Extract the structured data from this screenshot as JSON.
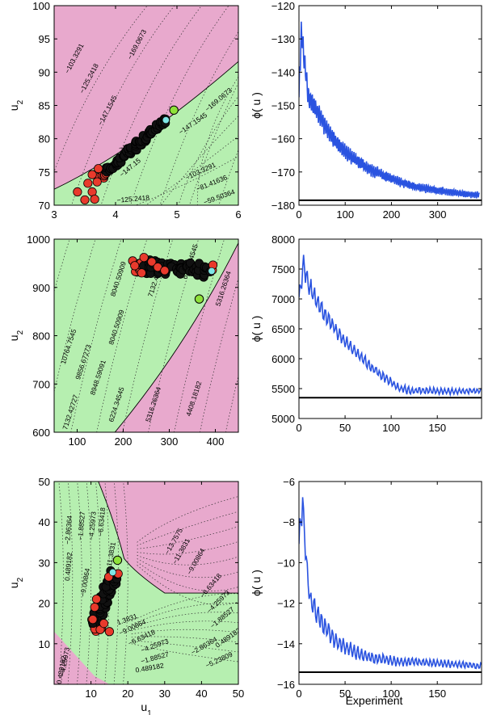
{
  "figure": {
    "left_panels": [
      {
        "xlim": [
          3,
          6
        ],
        "ylim": [
          70,
          100
        ],
        "xticks": [
          "3",
          "4",
          "5",
          "6"
        ],
        "yticks": [
          "70",
          "75",
          "80",
          "85",
          "90",
          "95",
          "100"
        ],
        "ylabel": "u2",
        "xlabel": "",
        "contour_labels": [
          "-103.3291",
          "-125.2418",
          "-147.1545",
          "-169.0673",
          "-169.0673",
          "-147.1545",
          "-103.3291",
          "-81.41636",
          "-59.50364",
          "-125.2418",
          "-169.07",
          "-147.15"
        ],
        "region_colors": {
          "infeasible": "#e8a9cd",
          "feasible": "#b6efb0"
        },
        "start_point": [
          4.95,
          84.3
        ],
        "end_point": [
          4.82,
          82.8
        ]
      },
      {
        "xlim": [
          50,
          450
        ],
        "ylim": [
          600,
          1000
        ],
        "xticks": [
          "100",
          "200",
          "300",
          "400"
        ],
        "yticks": [
          "600",
          "700",
          "800",
          "900",
          "1000"
        ],
        "ylabel": "u2",
        "xlabel": "",
        "contour_labels": [
          "10764.7545",
          "9856.67273",
          "8948.59091",
          "8040.50909",
          "7132.42727",
          "6224.34545",
          "5316.26364",
          "4408.18182",
          "8040.50909",
          "7132.4",
          "6224.34545",
          "5316.26364"
        ],
        "region_colors": {
          "infeasible": "#e8a9cd",
          "feasible": "#b6efb0"
        },
        "start_point": [
          365,
          876
        ],
        "end_point": [
          392,
          934
        ]
      },
      {
        "xlim": [
          0,
          50
        ],
        "ylim": [
          0,
          50
        ],
        "xticks": [
          "10",
          "20",
          "30",
          "40",
          "50"
        ],
        "yticks": [
          "10",
          "20",
          "30",
          "40",
          "50"
        ],
        "ylabel": "u2",
        "xlabel": "u1",
        "contour_labels": [
          "-2.86364",
          "-1.88527",
          "-4.25973",
          "-6.63418",
          "-11.3831",
          "0.489182",
          "-9.00864",
          "-13.7575",
          "-11.3831",
          "-9.00864",
          "-6.63418",
          "-4.25973",
          "-1.88527",
          "0.489182",
          "1.3831",
          "-9.00864",
          "-6.63418",
          "-4.25973",
          "-1.88527",
          "0.489182",
          "-2.86364",
          "-5.23809",
          "-4.25973",
          "-0.489182"
        ],
        "region_colors": {
          "infeasible": "#e8a9cd",
          "feasible": "#b6efb0"
        },
        "start_point": [
          17.2,
          30.6
        ],
        "end_point": [
          15.9,
          27.6
        ]
      }
    ],
    "right_panels": [
      {
        "ylabel": "ϕ( u )",
        "xlabel": "",
        "xlim": [
          0,
          395
        ],
        "ylim": [
          -180,
          -120
        ],
        "xticks": [
          "0",
          "100",
          "200",
          "300"
        ],
        "yticks": [
          "-180",
          "-170",
          "-160",
          "-150",
          "-140",
          "-130",
          "-120"
        ],
        "optimum": -178.5,
        "series_color": "#2a53e0"
      },
      {
        "ylabel": "ϕ( u )",
        "xlabel": "",
        "xlim": [
          0,
          198
        ],
        "ylim": [
          5000,
          8000
        ],
        "xticks": [
          "0",
          "50",
          "100",
          "150"
        ],
        "yticks": [
          "5000",
          "5500",
          "6000",
          "6500",
          "7000",
          "7500",
          "8000"
        ],
        "optimum": 5348,
        "series_color": "#2a53e0"
      },
      {
        "ylabel": "ϕ( u )",
        "xlabel": "Experiment",
        "xlim": [
          0,
          198
        ],
        "ylim": [
          -16,
          -6
        ],
        "xticks": [
          "0",
          "50",
          "100",
          "150"
        ],
        "yticks": [
          "-16",
          "-14",
          "-12",
          "-10",
          "-8",
          "-6"
        ],
        "optimum": -15.4,
        "series_color": "#2a53e0"
      }
    ]
  },
  "chart_data": [
    {
      "type": "line",
      "ylabel": "ϕ( u )",
      "xlim": [
        0,
        395
      ],
      "ylim": [
        -180,
        -120
      ],
      "optimum_line": -178.5,
      "series": [
        {
          "x": [
            0,
            5,
            10,
            20,
            40,
            60,
            80,
            100,
            150,
            200,
            250,
            300,
            350,
            390
          ],
          "values": [
            -147,
            -128,
            -134,
            -147,
            -152,
            -157,
            -161,
            -164,
            -169,
            -172,
            -174.5,
            -175.5,
            -176.5,
            -177
          ]
        }
      ]
    },
    {
      "type": "line",
      "ylabel": "ϕ( u )",
      "xlim": [
        0,
        198
      ],
      "ylim": [
        5000,
        8000
      ],
      "optimum_line": 5348,
      "series": [
        {
          "x": [
            0,
            5,
            10,
            20,
            30,
            40,
            50,
            60,
            70,
            80,
            90,
            100,
            110,
            120,
            150,
            198
          ],
          "values": [
            7000,
            7600,
            7250,
            6950,
            6700,
            6480,
            6290,
            6130,
            5980,
            5840,
            5720,
            5600,
            5500,
            5470,
            5460,
            5460
          ]
        }
      ]
    },
    {
      "type": "line",
      "ylabel": "ϕ( u )",
      "xlabel": "Experiment",
      "xlim": [
        0,
        198
      ],
      "ylim": [
        -16,
        -6
      ],
      "optimum_line": -15.4,
      "series": [
        {
          "x": [
            0,
            4,
            8,
            12,
            20,
            30,
            40,
            60,
            80,
            100,
            120,
            150,
            198
          ],
          "values": [
            -9,
            -7,
            -10,
            -11.8,
            -12.6,
            -13.3,
            -13.9,
            -14.4,
            -14.7,
            -14.85,
            -14.9,
            -14.95,
            -15.1
          ]
        }
      ]
    }
  ]
}
